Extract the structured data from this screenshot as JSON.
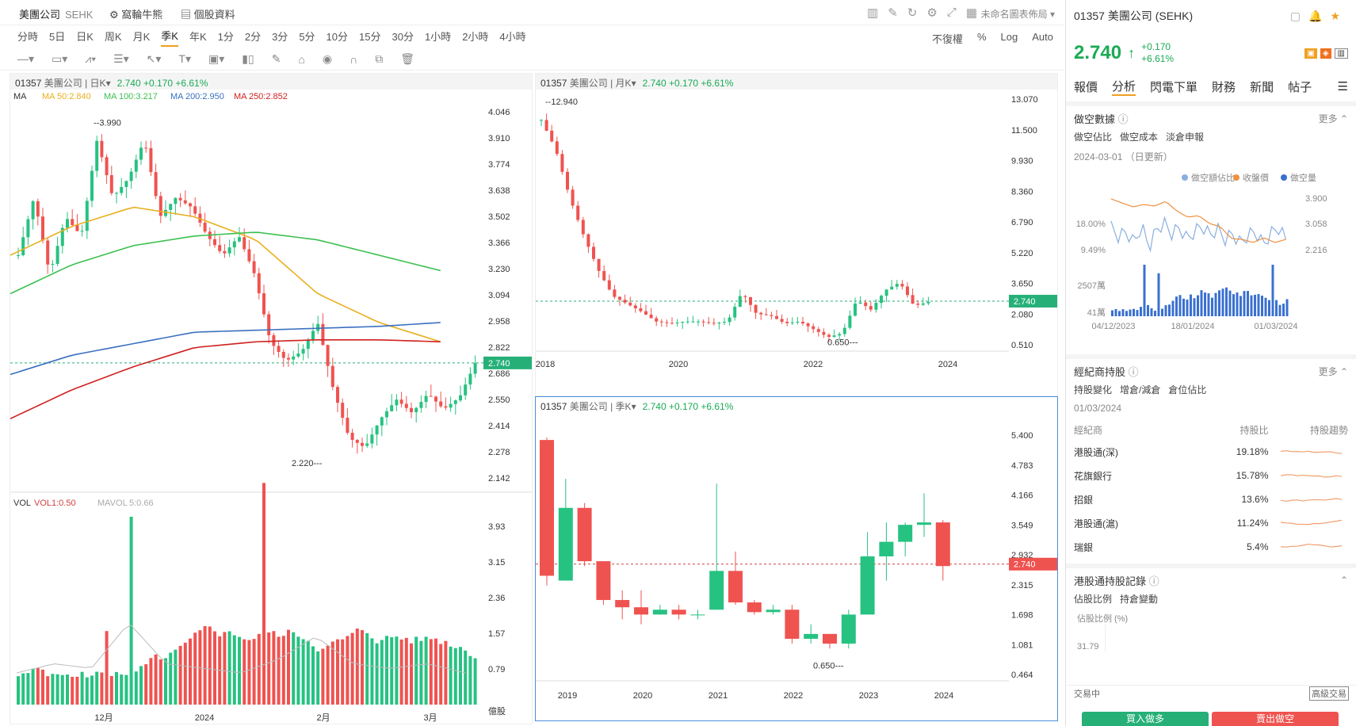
{
  "topbar": {
    "stock_name": "美團公司",
    "exchange": "SEHK",
    "link1": "窩輪牛熊",
    "link2": "個股資料",
    "layout": "未命名圖表佈局"
  },
  "periods": [
    "分時",
    "5日",
    "日K",
    "周K",
    "月K",
    "季K",
    "年K",
    "1分",
    "2分",
    "3分",
    "5分",
    "10分",
    "15分",
    "30分",
    "1小時",
    "2小時",
    "4小時"
  ],
  "active_period": "季K",
  "period_right": [
    "不復權",
    "%",
    "Log",
    "Auto"
  ],
  "panels": {
    "daily": {
      "code": "01357",
      "name": "美團公司",
      "period": "日K",
      "price": "2.740",
      "change": "+0.170",
      "pct": "+6.61%",
      "ma_labels": [
        "MA",
        "MA 50:2.840",
        "MA 100:3.217",
        "MA 200:2.950",
        "MA 250:2.852"
      ],
      "high_mark": "3.990",
      "low_mark": "2.220",
      "yticks": [
        "4.046",
        "3.910",
        "3.774",
        "3.638",
        "3.502",
        "3.366",
        "3.230",
        "3.094",
        "2.958",
        "2.822",
        "2.686",
        "2.550",
        "2.414",
        "2.278",
        "2.142"
      ],
      "last": "2.740",
      "vol_labels": [
        "VOL",
        "VOL1:0.50",
        "MAVOL",
        "5:0.66"
      ],
      "vol_ticks": [
        "3.93",
        "3.15",
        "2.36",
        "1.57",
        "0.79"
      ],
      "vol_unit": "億股",
      "xticks": [
        "12月",
        "2024",
        "2月",
        "3月"
      ]
    },
    "monthly": {
      "code": "01357",
      "name": "美團公司",
      "period": "月K",
      "price": "2.740",
      "change": "+0.170",
      "pct": "+6.61%",
      "high_mark": "12.940",
      "low_mark": "0.650",
      "yticks": [
        "13.070",
        "11.500",
        "9.930",
        "8.360",
        "6.790",
        "5.220",
        "3.650",
        "2.080",
        "0.510"
      ],
      "last": "2.740",
      "xticks": [
        "2018",
        "2020",
        "2022",
        "2024"
      ]
    },
    "quarterly": {
      "code": "01357",
      "name": "美團公司",
      "period": "季K",
      "price": "2.740",
      "change": "+0.170",
      "pct": "+6.61%",
      "low_mark": "0.650",
      "yticks": [
        "5.400",
        "4.783",
        "4.166",
        "3.549",
        "2.932",
        "2.315",
        "1.698",
        "1.081",
        "0.464"
      ],
      "last": "2.740",
      "xticks": [
        "2019",
        "2020",
        "2021",
        "2022",
        "2023",
        "2024"
      ]
    }
  },
  "sidebar": {
    "title": "01357 美團公司 (SEHK)",
    "price": "2.740",
    "change": "+0.170",
    "pct": "+6.61%",
    "tabs": [
      "報價",
      "分析",
      "閃電下單",
      "財務",
      "新聞",
      "帖子"
    ],
    "active_tab": "分析",
    "short": {
      "title": "做空數據",
      "more": "更多",
      "subtabs": [
        "做空佔比",
        "做空成本",
        "淡倉申報"
      ],
      "date": "2024-03-01 （日更新）",
      "legend": [
        "做空額佔比",
        "收盤價",
        "做空量"
      ],
      "left_ticks": [
        "18.00%",
        "9.49%"
      ],
      "right_ticks": [
        "3.900",
        "3.058",
        "2.216"
      ],
      "vol_ticks": [
        "2507萬",
        "41萬"
      ],
      "xticks": [
        "04/12/2023",
        "18/01/2024",
        "01/03/2024"
      ]
    },
    "broker": {
      "title": "經紀商持股",
      "more": "更多",
      "subtabs": [
        "持股變化",
        "增倉/減倉",
        "倉位佔比"
      ],
      "date": "01/03/2024",
      "headers": [
        "經紀商",
        "持股比",
        "持股趨勢"
      ],
      "rows": [
        {
          "name": "港股通(深)",
          "pct": "19.18%"
        },
        {
          "name": "花旗銀行",
          "pct": "15.78%"
        },
        {
          "name": "招銀",
          "pct": "13.6%"
        },
        {
          "name": "港股通(滬)",
          "pct": "11.24%"
        },
        {
          "name": "瑞銀",
          "pct": "5.4%"
        }
      ]
    },
    "connect": {
      "title": "港股通持股記錄",
      "subtabs": [
        "佔股比例",
        "持倉變動"
      ],
      "axis_label": "佔股比例 (%)",
      "tick": "31.79"
    },
    "footer": {
      "status": "交易中",
      "adv": "高級交易",
      "buy": "買入做多",
      "sell": "賣出做空"
    }
  },
  "colors": {
    "up": "#26c281",
    "down": "#ef5350",
    "accent": "#f0a020"
  }
}
